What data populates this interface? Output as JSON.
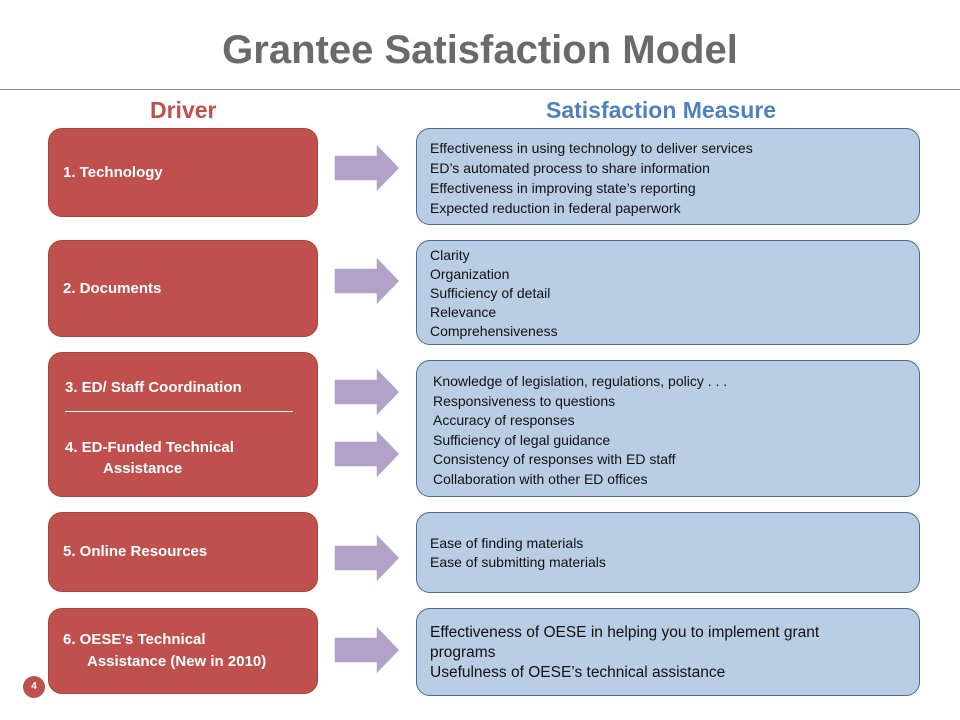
{
  "title": "Grantee Satisfaction Model",
  "headers": {
    "driver": "Driver",
    "measure": "Satisfaction Measure"
  },
  "rows": [
    {
      "drivers": [
        "1.  Technology"
      ],
      "measures": [
        "Effectiveness in using technology to deliver services",
        "ED’s automated process to share information",
        "Effectiveness in improving state’s reporting",
        "Expected reduction in federal paperwork"
      ]
    },
    {
      "drivers": [
        "2.  Documents"
      ],
      "measures": [
        "Clarity",
        "Organization",
        "Sufficiency of detail",
        "Relevance",
        "Comprehensiveness"
      ]
    },
    {
      "drivers": [
        "3.  ED/ Staff Coordination",
        "4.  ED-Funded Technical",
        "Assistance"
      ],
      "measures": [
        "Knowledge of legislation, regulations, policy . . .",
        "Responsiveness to questions",
        "Accuracy of responses",
        "Sufficiency of legal guidance",
        "Consistency of responses with ED staff",
        "Collaboration with other ED offices"
      ]
    },
    {
      "drivers": [
        "5.  Online Resources"
      ],
      "measures": [
        "Ease of finding materials",
        "Ease of submitting materials"
      ]
    },
    {
      "drivers": [
        "6.  OESE’s Technical",
        "Assistance  (New in 2010)"
      ],
      "measures": [
        "Effectiveness of OESE in helping you to implement grant",
        "programs",
        "Usefulness of OESE’s technical assistance"
      ]
    }
  ],
  "page_number": "4",
  "colors": {
    "driver_fill": "#c0504d",
    "measure_fill": "#b9cde5",
    "arrow_fill": "#b3a2c7",
    "driver_header": "#c0504d",
    "measure_header": "#4f81bd"
  }
}
